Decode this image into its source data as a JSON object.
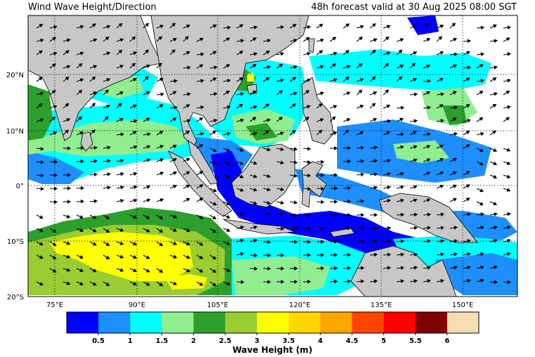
{
  "header": {
    "title": "Wind Wave Height/Direction",
    "valid": "48h forecast valid at 30 Aug 2025 08:00 SGT"
  },
  "axes": {
    "lat_labels": [
      "20°N",
      "10°N",
      "0°",
      "10°S",
      "20°S"
    ],
    "lon_labels": [
      "75°E",
      "90°E",
      "105°E",
      "120°E",
      "135°E",
      "150°E"
    ]
  },
  "colorbar": {
    "title": "Wave Height (m)",
    "tick_labels": [
      "0.5",
      "1",
      "1.5",
      "2",
      "2.5",
      "3",
      "3.5",
      "4",
      "4.5",
      "5",
      "5.5",
      "6"
    ],
    "colors": [
      "#0000ff",
      "#1e8fff",
      "#00ffff",
      "#90ee90",
      "#2ca02c",
      "#9acd32",
      "#ffff00",
      "#ffd700",
      "#ffa500",
      "#ff4500",
      "#ff0000",
      "#800000",
      "#f5deb3"
    ]
  },
  "legend_colors": {
    "land": "#c8c8c8",
    "sea_calm": "#ffffff",
    "arrow": "#000000"
  }
}
